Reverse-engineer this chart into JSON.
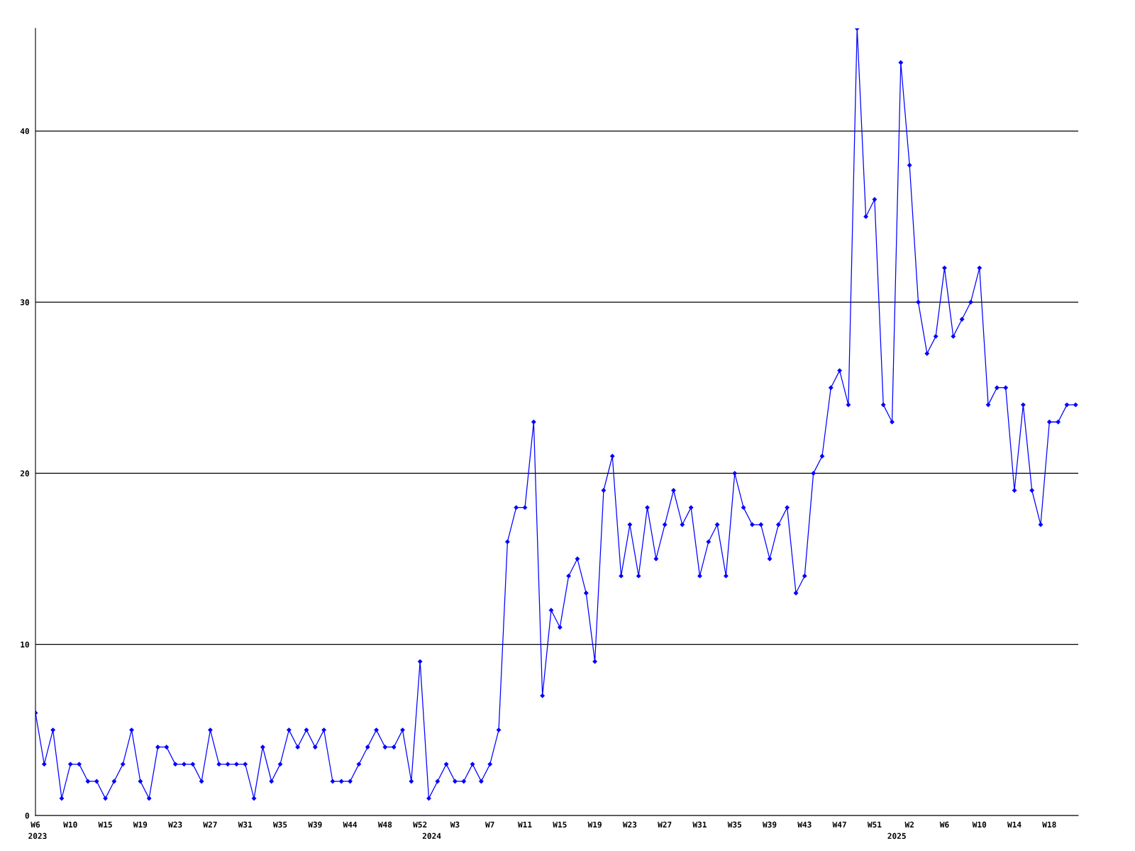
{
  "chart_data": {
    "type": "line",
    "categories": [
      "W6",
      null,
      null,
      null,
      "W10",
      null,
      null,
      null,
      "W15",
      null,
      null,
      null,
      "W19",
      null,
      null,
      null,
      "W23",
      null,
      null,
      null,
      "W27",
      null,
      null,
      null,
      "W31",
      null,
      null,
      null,
      "W35",
      null,
      null,
      null,
      "W39",
      null,
      null,
      null,
      "W44",
      null,
      null,
      null,
      "W48",
      null,
      null,
      null,
      "W52",
      null,
      null,
      null,
      "W3",
      null,
      null,
      null,
      "W7",
      null,
      null,
      null,
      "W11",
      null,
      null,
      null,
      "W15",
      null,
      null,
      null,
      "W19",
      null,
      null,
      null,
      "W23",
      null,
      null,
      null,
      "W27",
      null,
      null,
      null,
      "W31",
      null,
      null,
      null,
      "W35",
      null,
      null,
      null,
      "W39",
      null,
      null,
      null,
      "W43",
      null,
      null,
      null,
      "W47",
      null,
      null,
      null,
      "W51",
      null,
      null,
      null,
      "W2",
      null,
      null,
      null,
      "W6",
      null,
      null,
      null,
      "W10",
      null,
      null,
      null,
      "W14",
      null,
      null,
      null,
      "W18",
      null,
      null,
      null
    ],
    "series": [
      {
        "color": "#0000ff",
        "values": [
          6,
          3,
          5,
          1,
          3,
          3,
          2,
          2,
          1,
          2,
          3,
          5,
          2,
          1,
          4,
          4,
          3,
          3,
          3,
          2,
          5,
          3,
          3,
          3,
          3,
          1,
          4,
          2,
          3,
          5,
          4,
          5,
          4,
          5,
          2,
          2,
          2,
          3,
          4,
          5,
          4,
          4,
          5,
          2,
          9,
          1,
          2,
          3,
          2,
          2,
          3,
          2,
          3,
          5,
          16,
          18,
          18,
          23,
          7,
          12,
          11,
          14,
          15,
          13,
          9,
          19,
          21,
          14,
          17,
          14,
          18,
          15,
          17,
          19,
          17,
          18,
          14,
          16,
          17,
          14,
          20,
          18,
          17,
          17,
          15,
          17,
          18,
          13,
          14,
          20,
          21,
          25,
          26,
          24,
          46,
          35,
          36,
          24,
          23,
          44,
          38,
          30,
          27,
          28,
          32,
          28,
          29,
          30,
          32,
          24,
          25,
          25,
          19,
          24,
          19,
          17,
          23,
          23,
          24,
          24
        ]
      }
    ],
    "ylim": [
      0,
      46
    ],
    "yticks": [
      0,
      10,
      20,
      30,
      40
    ],
    "grid": "y",
    "marker": "diamond",
    "line_style": "solid",
    "legend": false,
    "annotations": [
      "2023",
      "2024",
      "2025"
    ]
  }
}
